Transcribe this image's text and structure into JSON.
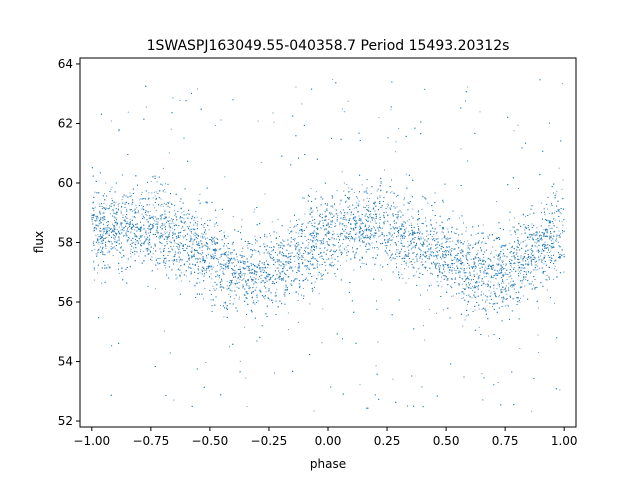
{
  "chart_data": {
    "type": "scatter",
    "title": "1SWASPJ163049.55-040358.7 Period 15493.20312s",
    "xlabel": "phase",
    "ylabel": "flux",
    "xlim": [
      -1.05,
      1.05
    ],
    "ylim": [
      51.8,
      64.2
    ],
    "xticks": [
      -1.0,
      -0.75,
      -0.5,
      -0.25,
      0.0,
      0.25,
      0.5,
      0.75,
      1.0
    ],
    "xtick_labels": [
      "−1.00",
      "−0.75",
      "−0.50",
      "−0.25",
      "0.00",
      "0.25",
      "0.50",
      "0.75",
      "1.00"
    ],
    "yticks": [
      52,
      54,
      56,
      58,
      60,
      62,
      64
    ],
    "ytick_labels": [
      "52",
      "54",
      "56",
      "58",
      "60",
      "62",
      "64"
    ],
    "grid": false,
    "point_color": "#1f77b4",
    "series": [
      {
        "phase": [
          -1.0,
          -0.9,
          -0.8,
          -0.7,
          -0.6,
          -0.5,
          -0.4,
          -0.3,
          -0.2,
          -0.1,
          0.0,
          0.1,
          0.2,
          0.3,
          0.4,
          0.5,
          0.6,
          0.7,
          0.8,
          0.9,
          1.0
        ],
        "median_flux": [
          58.3,
          58.5,
          58.6,
          58.4,
          58.0,
          57.5,
          57.0,
          56.9,
          57.2,
          57.8,
          58.2,
          58.5,
          58.6,
          58.4,
          58.0,
          57.5,
          57.0,
          56.9,
          57.2,
          57.8,
          58.2
        ],
        "scatter_halfwidth": 1.1,
        "outlier_range": [
          52.3,
          63.5
        ]
      }
    ]
  }
}
